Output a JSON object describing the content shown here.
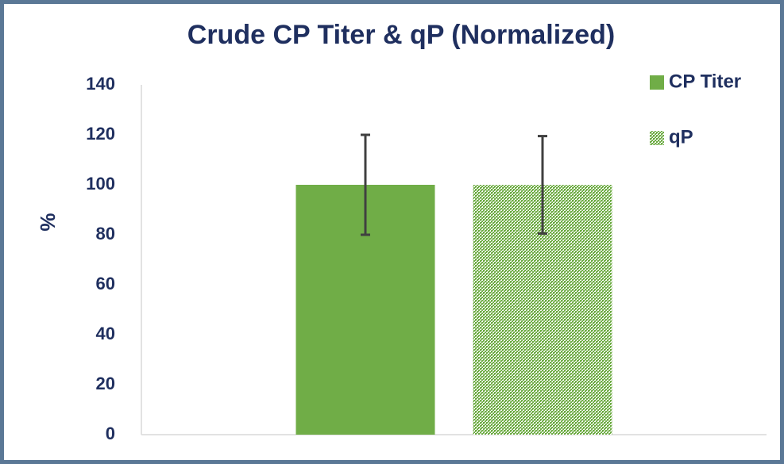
{
  "chart_data": {
    "type": "bar",
    "title": "Crude CP Titer & qP (Normalized)",
    "ylabel": "%",
    "categories": [
      null
    ],
    "series": [
      {
        "name": "CP Titer",
        "color": "#70ad47",
        "pattern": "solid",
        "values": [
          100
        ],
        "errors": [
          20
        ]
      },
      {
        "name": "qP",
        "color": "#70ad47",
        "pattern": "checker",
        "values": [
          100
        ],
        "errors": [
          19.5
        ]
      }
    ],
    "ylim": [
      0,
      140
    ],
    "yticks": [
      0,
      20,
      40,
      60,
      80,
      100,
      120,
      140
    ],
    "grid": false,
    "legend": "top-right"
  }
}
